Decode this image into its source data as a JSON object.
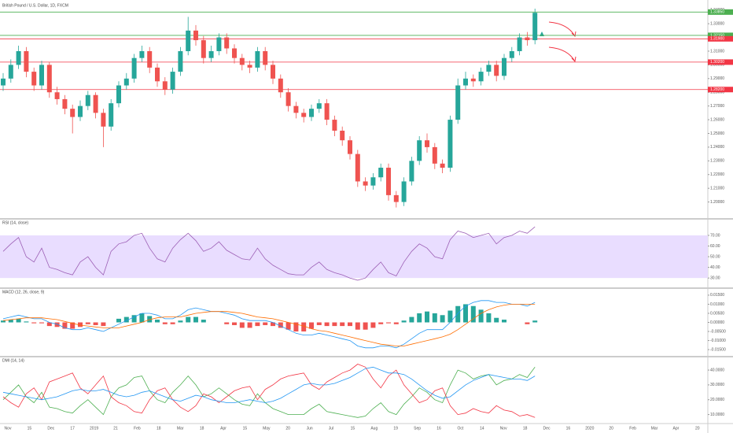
{
  "chart_data": [
    {
      "type": "candlestick",
      "title": "British Pound / U.S. Dollar, 1D, FXCM",
      "color_up": "#26a69a",
      "color_down": "#ef5350",
      "open": [
        1.285,
        1.29,
        1.3,
        1.31,
        1.295,
        1.285,
        1.3,
        1.28,
        1.275,
        1.268,
        1.262,
        1.27,
        1.278,
        1.265,
        1.255,
        1.272,
        1.285,
        1.29,
        1.305,
        1.31,
        1.298,
        1.288,
        1.282,
        1.295,
        1.31,
        1.325,
        1.318,
        1.305,
        1.31,
        1.32,
        1.312,
        1.305,
        1.3,
        1.298,
        1.31,
        1.3,
        1.29,
        1.28,
        1.27,
        1.265,
        1.262,
        1.268,
        1.272,
        1.26,
        1.252,
        1.245,
        1.235,
        1.215,
        1.212,
        1.218,
        1.225,
        1.205,
        1.2,
        1.215,
        1.23,
        1.245,
        1.24,
        1.228,
        1.225,
        1.26,
        1.285,
        1.29,
        1.288,
        1.295,
        1.3,
        1.292,
        1.305,
        1.31,
        1.32,
        1.318
      ],
      "high": [
        1.294,
        1.304,
        1.314,
        1.313,
        1.298,
        1.303,
        1.302,
        1.284,
        1.278,
        1.271,
        1.274,
        1.281,
        1.28,
        1.268,
        1.275,
        1.288,
        1.294,
        1.308,
        1.314,
        1.313,
        1.301,
        1.291,
        1.298,
        1.313,
        1.335,
        1.329,
        1.321,
        1.314,
        1.323,
        1.323,
        1.315,
        1.308,
        1.303,
        1.313,
        1.313,
        1.303,
        1.293,
        1.283,
        1.273,
        1.268,
        1.271,
        1.275,
        1.275,
        1.263,
        1.255,
        1.248,
        1.238,
        1.218,
        1.221,
        1.228,
        1.228,
        1.208,
        1.218,
        1.233,
        1.248,
        1.25,
        1.243,
        1.231,
        1.263,
        1.29,
        1.295,
        1.293,
        1.298,
        1.303,
        1.303,
        1.308,
        1.313,
        1.323,
        1.324,
        1.341
      ],
      "low": [
        1.281,
        1.287,
        1.297,
        1.291,
        1.281,
        1.282,
        1.276,
        1.271,
        1.264,
        1.25,
        1.259,
        1.267,
        1.261,
        1.24,
        1.252,
        1.269,
        1.282,
        1.287,
        1.302,
        1.294,
        1.284,
        1.278,
        1.279,
        1.292,
        1.307,
        1.314,
        1.301,
        1.302,
        1.307,
        1.308,
        1.301,
        1.296,
        1.294,
        1.295,
        1.296,
        1.286,
        1.276,
        1.266,
        1.261,
        1.258,
        1.259,
        1.265,
        1.256,
        1.248,
        1.241,
        1.231,
        1.211,
        1.208,
        1.209,
        1.215,
        1.201,
        1.196,
        1.197,
        1.212,
        1.227,
        1.236,
        1.224,
        1.221,
        1.222,
        1.257,
        1.282,
        1.284,
        1.285,
        1.292,
        1.288,
        1.289,
        1.302,
        1.307,
        1.314,
        1.315
      ],
      "close": [
        1.29,
        1.3,
        1.31,
        1.295,
        1.285,
        1.3,
        1.28,
        1.275,
        1.268,
        1.262,
        1.27,
        1.278,
        1.265,
        1.255,
        1.272,
        1.285,
        1.29,
        1.305,
        1.31,
        1.298,
        1.288,
        1.282,
        1.295,
        1.31,
        1.325,
        1.318,
        1.305,
        1.31,
        1.32,
        1.312,
        1.305,
        1.3,
        1.298,
        1.31,
        1.3,
        1.29,
        1.28,
        1.27,
        1.265,
        1.262,
        1.268,
        1.272,
        1.26,
        1.252,
        1.245,
        1.235,
        1.215,
        1.212,
        1.218,
        1.225,
        1.205,
        1.2,
        1.215,
        1.23,
        1.245,
        1.24,
        1.228,
        1.225,
        1.26,
        1.285,
        1.29,
        1.288,
        1.295,
        1.3,
        1.292,
        1.305,
        1.31,
        1.32,
        1.318,
        1.338
      ],
      "ylim": [
        1.19,
        1.345
      ],
      "yticks": [
        {
          "value": 1.34,
          "label": "1.34000"
        },
        {
          "value": 1.33,
          "label": "1.33000"
        },
        {
          "value": 1.32,
          "label": "1.32000"
        },
        {
          "value": 1.31,
          "label": "1.31000"
        },
        {
          "value": 1.3,
          "label": "1.30000"
        },
        {
          "value": 1.29,
          "label": "1.29000"
        },
        {
          "value": 1.28,
          "label": "1.28000"
        },
        {
          "value": 1.27,
          "label": "1.27000"
        },
        {
          "value": 1.26,
          "label": "1.26000"
        },
        {
          "value": 1.25,
          "label": "1.25000"
        },
        {
          "value": 1.24,
          "label": "1.24000"
        },
        {
          "value": 1.23,
          "label": "1.23000"
        },
        {
          "value": 1.22,
          "label": "1.22000"
        },
        {
          "value": 1.21,
          "label": "1.21000"
        },
        {
          "value": 1.2,
          "label": "1.20000"
        }
      ],
      "levels": [
        {
          "value": 1.3385,
          "label": "1.33850",
          "color": "#4caf50"
        },
        {
          "value": 1.3215,
          "label": "1.32150",
          "color": "#4caf50"
        },
        {
          "value": 1.319,
          "label": "1.31900",
          "color": "#f23645"
        },
        {
          "value": 1.302,
          "label": "1.30200",
          "color": "#f23645"
        },
        {
          "value": 1.282,
          "label": "1.28200",
          "color": "#f23645"
        }
      ]
    },
    {
      "type": "line",
      "title": "RSI (14, close)",
      "band": [
        30,
        70
      ],
      "band_color": "#e9ddff",
      "series": [
        {
          "name": "RSI",
          "color": "#9c5fb5",
          "values": [
            55,
            62,
            68,
            50,
            45,
            58,
            40,
            38,
            35,
            33,
            45,
            50,
            40,
            33,
            55,
            62,
            64,
            70,
            72,
            58,
            48,
            45,
            58,
            66,
            72,
            65,
            55,
            58,
            64,
            56,
            52,
            48,
            47,
            58,
            48,
            42,
            38,
            34,
            33,
            33,
            40,
            45,
            38,
            35,
            33,
            30,
            28,
            30,
            38,
            45,
            35,
            32,
            45,
            55,
            62,
            58,
            50,
            48,
            66,
            74,
            72,
            68,
            70,
            72,
            62,
            68,
            70,
            74,
            72,
            78
          ]
        }
      ],
      "ylim": [
        22,
        84
      ],
      "yticks": [
        {
          "value": 70,
          "label": "70.00"
        },
        {
          "value": 60,
          "label": "60.00"
        },
        {
          "value": 50,
          "label": "50.00"
        },
        {
          "value": 40,
          "label": "40.00"
        },
        {
          "value": 30,
          "label": "30.00"
        }
      ]
    },
    {
      "type": "combo",
      "title": "MACD (12, 26, close, 9)",
      "color_up": "#26a69a",
      "color_down": "#ef5350",
      "histogram": [
        0.001,
        0.0015,
        0.002,
        0.0005,
        -0.0005,
        -0.0005,
        -0.002,
        -0.0025,
        -0.0035,
        -0.0035,
        -0.0025,
        -0.001,
        -0.0015,
        -0.002,
        0,
        0.002,
        0.003,
        0.004,
        0.005,
        0.0035,
        0.0015,
        -0.001,
        -0.001,
        0.001,
        0.003,
        0.003,
        0.0015,
        0,
        0,
        -0.001,
        -0.0015,
        -0.003,
        -0.003,
        -0.002,
        -0.0015,
        -0.002,
        -0.003,
        -0.004,
        -0.005,
        -0.005,
        -0.0035,
        -0.0015,
        -0.002,
        -0.002,
        -0.002,
        -0.002,
        -0.004,
        -0.004,
        -0.003,
        -0.001,
        -0.0005,
        -0.001,
        0.001,
        0.003,
        0.005,
        0.006,
        0.005,
        0.004,
        0.0065,
        0.009,
        0.01,
        0.009,
        0.007,
        0.005,
        0.0025,
        0.0015,
        0,
        0,
        -0.001,
        0.001
      ],
      "series": [
        {
          "name": "MACD",
          "color": "#2196f3",
          "values": [
            0.002,
            0.003,
            0.004,
            0.003,
            0.002,
            0.002,
            0,
            -0.001,
            -0.003,
            -0.004,
            -0.004,
            -0.003,
            -0.004,
            -0.005,
            -0.003,
            -0.001,
            0.001,
            0.003,
            0.005,
            0.005,
            0.004,
            0.002,
            0.002,
            0.004,
            0.007,
            0.008,
            0.007,
            0.006,
            0.006,
            0.005,
            0.004,
            0.002,
            0.001,
            0.001,
            0.001,
            0,
            -0.002,
            -0.004,
            -0.006,
            -0.007,
            -0.007,
            -0.006,
            -0.007,
            -0.008,
            -0.009,
            -0.01,
            -0.013,
            -0.014,
            -0.014,
            -0.013,
            -0.013,
            -0.014,
            -0.012,
            -0.009,
            -0.006,
            -0.004,
            -0.004,
            -0.004,
            0,
            0.005,
            0.009,
            0.011,
            0.012,
            0.012,
            0.011,
            0.011,
            0.01,
            0.01,
            0.009,
            0.011
          ]
        },
        {
          "name": "Signal",
          "color": "#ff6d00",
          "values": [
            0.001,
            0.0015,
            0.002,
            0.0025,
            0.0025,
            0.0025,
            0.002,
            0.0015,
            0.0005,
            -0.0005,
            -0.0015,
            -0.002,
            -0.0025,
            -0.003,
            -0.003,
            -0.003,
            -0.002,
            -0.001,
            0,
            0.0015,
            0.0025,
            0.003,
            0.003,
            0.003,
            0.004,
            0.005,
            0.0055,
            0.006,
            0.006,
            0.006,
            0.0055,
            0.005,
            0.004,
            0.003,
            0.0025,
            0.002,
            0.001,
            0,
            -0.001,
            -0.002,
            -0.0035,
            -0.0045,
            -0.005,
            -0.006,
            -0.007,
            -0.008,
            -0.009,
            -0.01,
            -0.011,
            -0.012,
            -0.0125,
            -0.013,
            -0.013,
            -0.012,
            -0.011,
            -0.01,
            -0.009,
            -0.008,
            -0.0065,
            -0.004,
            -0.001,
            0.002,
            0.005,
            0.007,
            0.0085,
            0.0095,
            0.01,
            0.01,
            0.01,
            0.01
          ]
        }
      ],
      "ylim": [
        -0.018,
        0.018
      ],
      "yticks": [
        {
          "value": 0.015,
          "label": "0.01500"
        },
        {
          "value": 0.01,
          "label": "0.01000"
        },
        {
          "value": 0.005,
          "label": "0.00500"
        },
        {
          "value": 0,
          "label": "0.00000"
        },
        {
          "value": -0.005,
          "label": "-0.00500"
        },
        {
          "value": -0.01,
          "label": "-0.01000"
        },
        {
          "value": -0.015,
          "label": "-0.01500"
        }
      ]
    },
    {
      "type": "line",
      "title": "DMI (14, 14)",
      "series": [
        {
          "name": "+DI",
          "color": "#4caf50",
          "values": [
            20,
            25,
            30,
            22,
            18,
            25,
            15,
            14,
            12,
            11,
            16,
            20,
            15,
            10,
            22,
            28,
            30,
            35,
            36,
            26,
            20,
            18,
            25,
            30,
            36,
            30,
            22,
            24,
            28,
            24,
            20,
            17,
            16,
            24,
            18,
            14,
            12,
            10,
            10,
            10,
            14,
            17,
            12,
            11,
            10,
            9,
            8,
            9,
            14,
            18,
            12,
            10,
            17,
            22,
            28,
            25,
            20,
            18,
            30,
            40,
            38,
            34,
            36,
            37,
            30,
            33,
            34,
            37,
            35,
            42
          ]
        },
        {
          "name": "-DI",
          "color": "#f23645",
          "values": [
            22,
            18,
            15,
            24,
            28,
            20,
            32,
            34,
            36,
            38,
            28,
            24,
            30,
            36,
            22,
            18,
            16,
            12,
            11,
            20,
            26,
            28,
            20,
            15,
            12,
            16,
            24,
            22,
            18,
            22,
            26,
            28,
            29,
            20,
            27,
            30,
            34,
            36,
            37,
            38,
            30,
            27,
            32,
            35,
            38,
            40,
            44,
            42,
            34,
            28,
            36,
            40,
            30,
            24,
            18,
            20,
            26,
            28,
            16,
            10,
            11,
            14,
            12,
            11,
            16,
            13,
            12,
            9,
            10,
            8
          ]
        },
        {
          "name": "ADX",
          "color": "#2196f3",
          "values": [
            25,
            24,
            23,
            22,
            21,
            20,
            21,
            22,
            24,
            26,
            27,
            26,
            26,
            27,
            25,
            23,
            22,
            23,
            25,
            26,
            24,
            22,
            20,
            19,
            21,
            23,
            22,
            20,
            19,
            18,
            18,
            19,
            20,
            19,
            18,
            19,
            21,
            24,
            27,
            30,
            31,
            30,
            30,
            31,
            33,
            35,
            38,
            41,
            42,
            40,
            38,
            38,
            37,
            34,
            30,
            26,
            23,
            21,
            22,
            26,
            30,
            33,
            35,
            37,
            36,
            35,
            34,
            34,
            33,
            36
          ]
        }
      ],
      "ylim": [
        5,
        48
      ],
      "yticks": [
        {
          "value": 40,
          "label": "40.0000"
        },
        {
          "value": 30,
          "label": "30.0000"
        },
        {
          "value": 20,
          "label": "20.0000"
        },
        {
          "value": 10,
          "label": "10.0000"
        }
      ],
      "x_labels": [
        "Nov",
        "15",
        "Dec",
        "17",
        "2019",
        "21",
        "Feb",
        "18",
        "Mar",
        "18",
        "Apr",
        "15",
        "May",
        "20",
        "Jun",
        "Jul",
        "15",
        "Aug",
        "19",
        "Sep",
        "16",
        "Oct",
        "14",
        "Nov",
        "18",
        "Dec",
        "16",
        "2020",
        "20",
        "Feb",
        "Mar",
        "Apr",
        "20"
      ]
    }
  ]
}
